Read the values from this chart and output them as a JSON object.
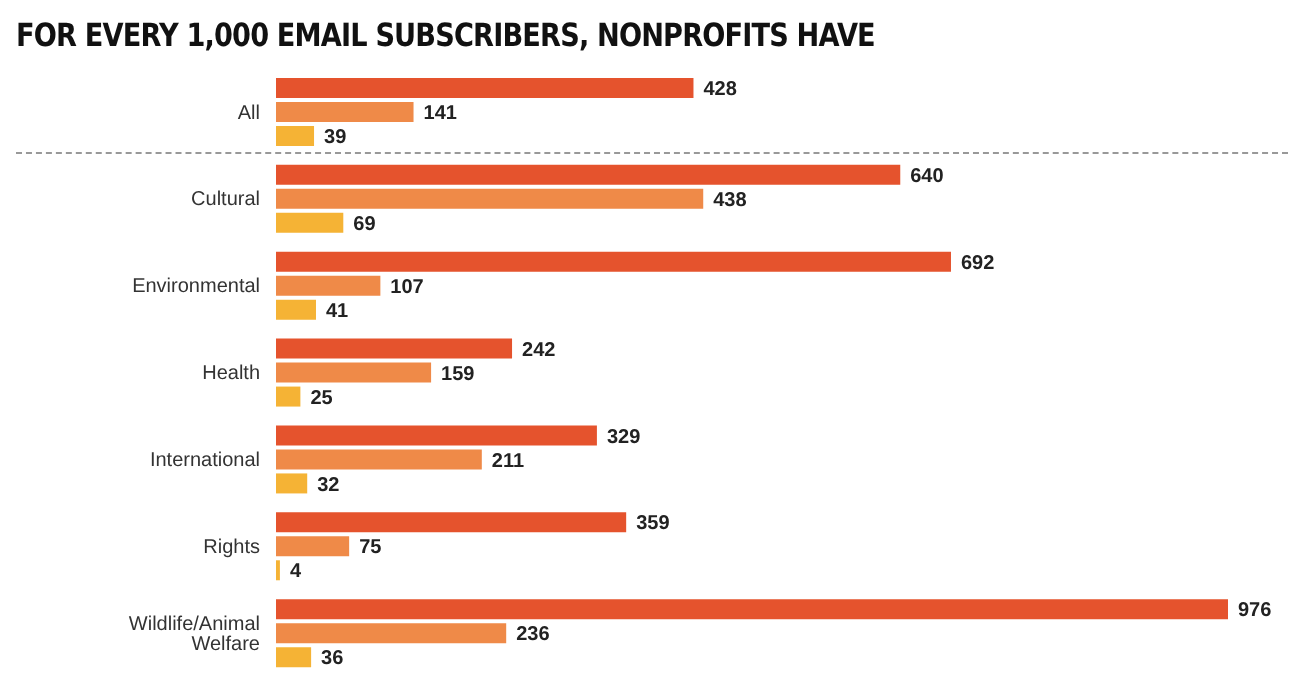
{
  "chart_data": {
    "type": "bar",
    "title": "FOR EVERY 1,000 EMAIL SUBSCRIBERS, NONPROFITS HAVE",
    "orientation": "horizontal",
    "categories": [
      "All",
      "Cultural",
      "Environmental",
      "Health",
      "International",
      "Rights",
      "Wildlife/Animal Welfare"
    ],
    "series": [
      {
        "color": "#e5532d",
        "values": [
          428,
          640,
          692,
          242,
          329,
          359,
          976
        ]
      },
      {
        "color": "#ef8a48",
        "values": [
          141,
          438,
          107,
          159,
          211,
          75,
          236
        ]
      },
      {
        "color": "#f5b335",
        "values": [
          39,
          69,
          41,
          25,
          32,
          4,
          36
        ]
      }
    ],
    "data_labels": true,
    "tick_labels": "y"
  }
}
